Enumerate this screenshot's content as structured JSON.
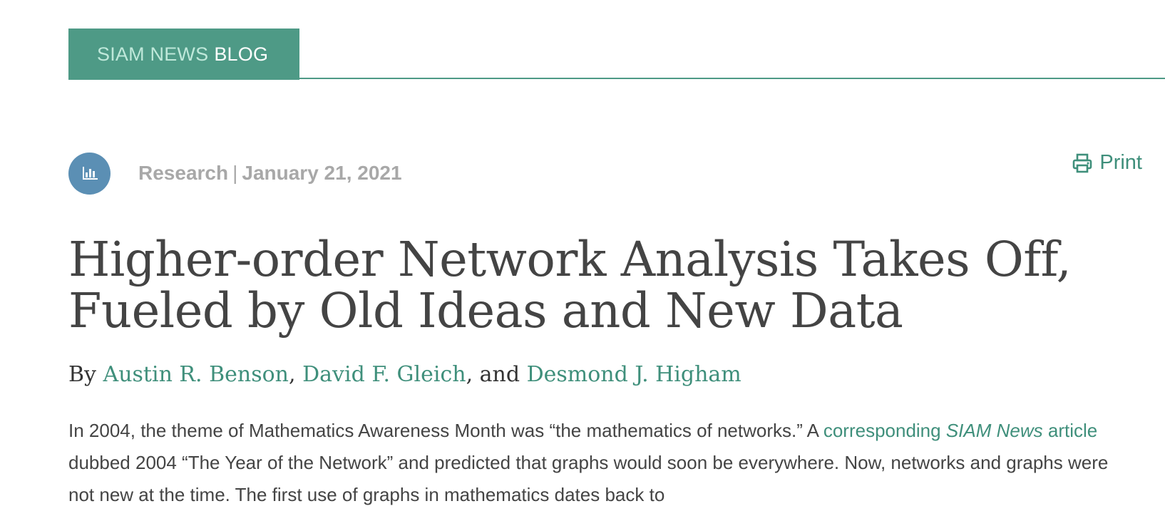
{
  "header": {
    "brand_part1": "SIAM NEWS",
    "brand_part2": "BLOG",
    "accent_color": "#4e9a86"
  },
  "meta": {
    "category_icon": "bar-chart-icon",
    "category": "Research",
    "separator": "|",
    "date": "January 21, 2021"
  },
  "print": {
    "icon": "printer-icon",
    "label": "Print"
  },
  "article": {
    "title": "Higher-order Network Analysis Takes Off, Fueled by Old Ideas and New Data",
    "byline": {
      "prefix": "By",
      "authors": [
        "Austin R. Benson",
        "David F. Gleich",
        "Desmond J. Higham"
      ],
      "comma": ",",
      "and_text": ", and"
    },
    "intro": {
      "part1": "In 2004, the theme of Mathematics Awareness Month was “the mathematics of networks.” A ",
      "link_part1": "corresponding ",
      "link_italic": "SIAM News",
      "link_part2": " article",
      "part2": " dubbed 2004 “The Year of the Network” and predicted that graphs would soon be everywhere. Now, networks and graphs were not new at the time. The first use of graphs in mathematics dates back to"
    }
  },
  "colors": {
    "link": "#3f8f7b",
    "meta_gray": "#a8a8a8",
    "icon_circle": "#5b8fb4",
    "text": "#444444"
  }
}
